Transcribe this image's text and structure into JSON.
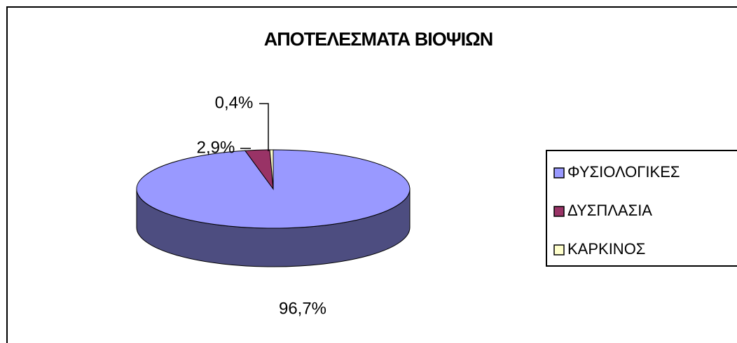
{
  "chart_data": {
    "type": "pie",
    "title": "ΑΠΟΤΕΛΕΣΜΑΤΑ ΒΙΟΨΙΩΝ",
    "categories": [
      "ΦΥΣΙΟΛΟΓΙΚΕΣ",
      "ΔΥΣΠΛΑΣΙΑ",
      "ΚΑΡΚΙΝΟΣ"
    ],
    "values": [
      96.7,
      2.9,
      0.4
    ],
    "value_labels": [
      "96,7%",
      "2,9%",
      "0,4%"
    ],
    "colors": [
      "#9999ff",
      "#993366",
      "#ffffcc"
    ],
    "legend": "right"
  }
}
